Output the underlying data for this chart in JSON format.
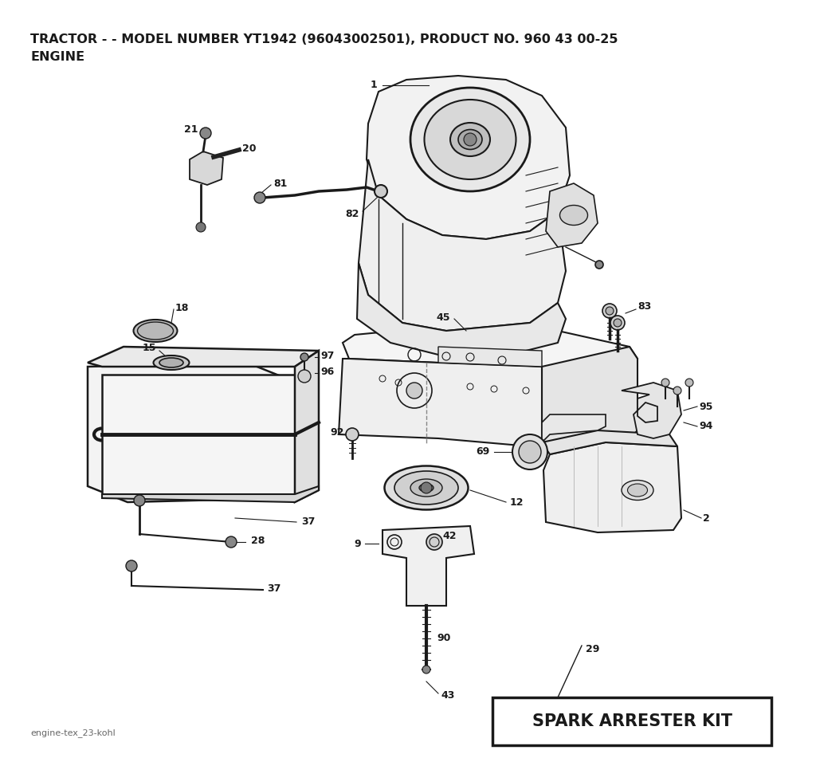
{
  "title_line1": "TRACTOR - - MODEL NUMBER YT1942 (96043002501), PRODUCT NO. 960 43 00-25",
  "title_line2": "ENGINE",
  "footer_text": "engine-tex_23-kohl",
  "spark_arrester_label": "SPARK ARRESTER KIT",
  "background_color": "#ffffff",
  "line_color": "#1a1a1a",
  "title_fontsize": 11.5,
  "footer_fontsize": 8
}
